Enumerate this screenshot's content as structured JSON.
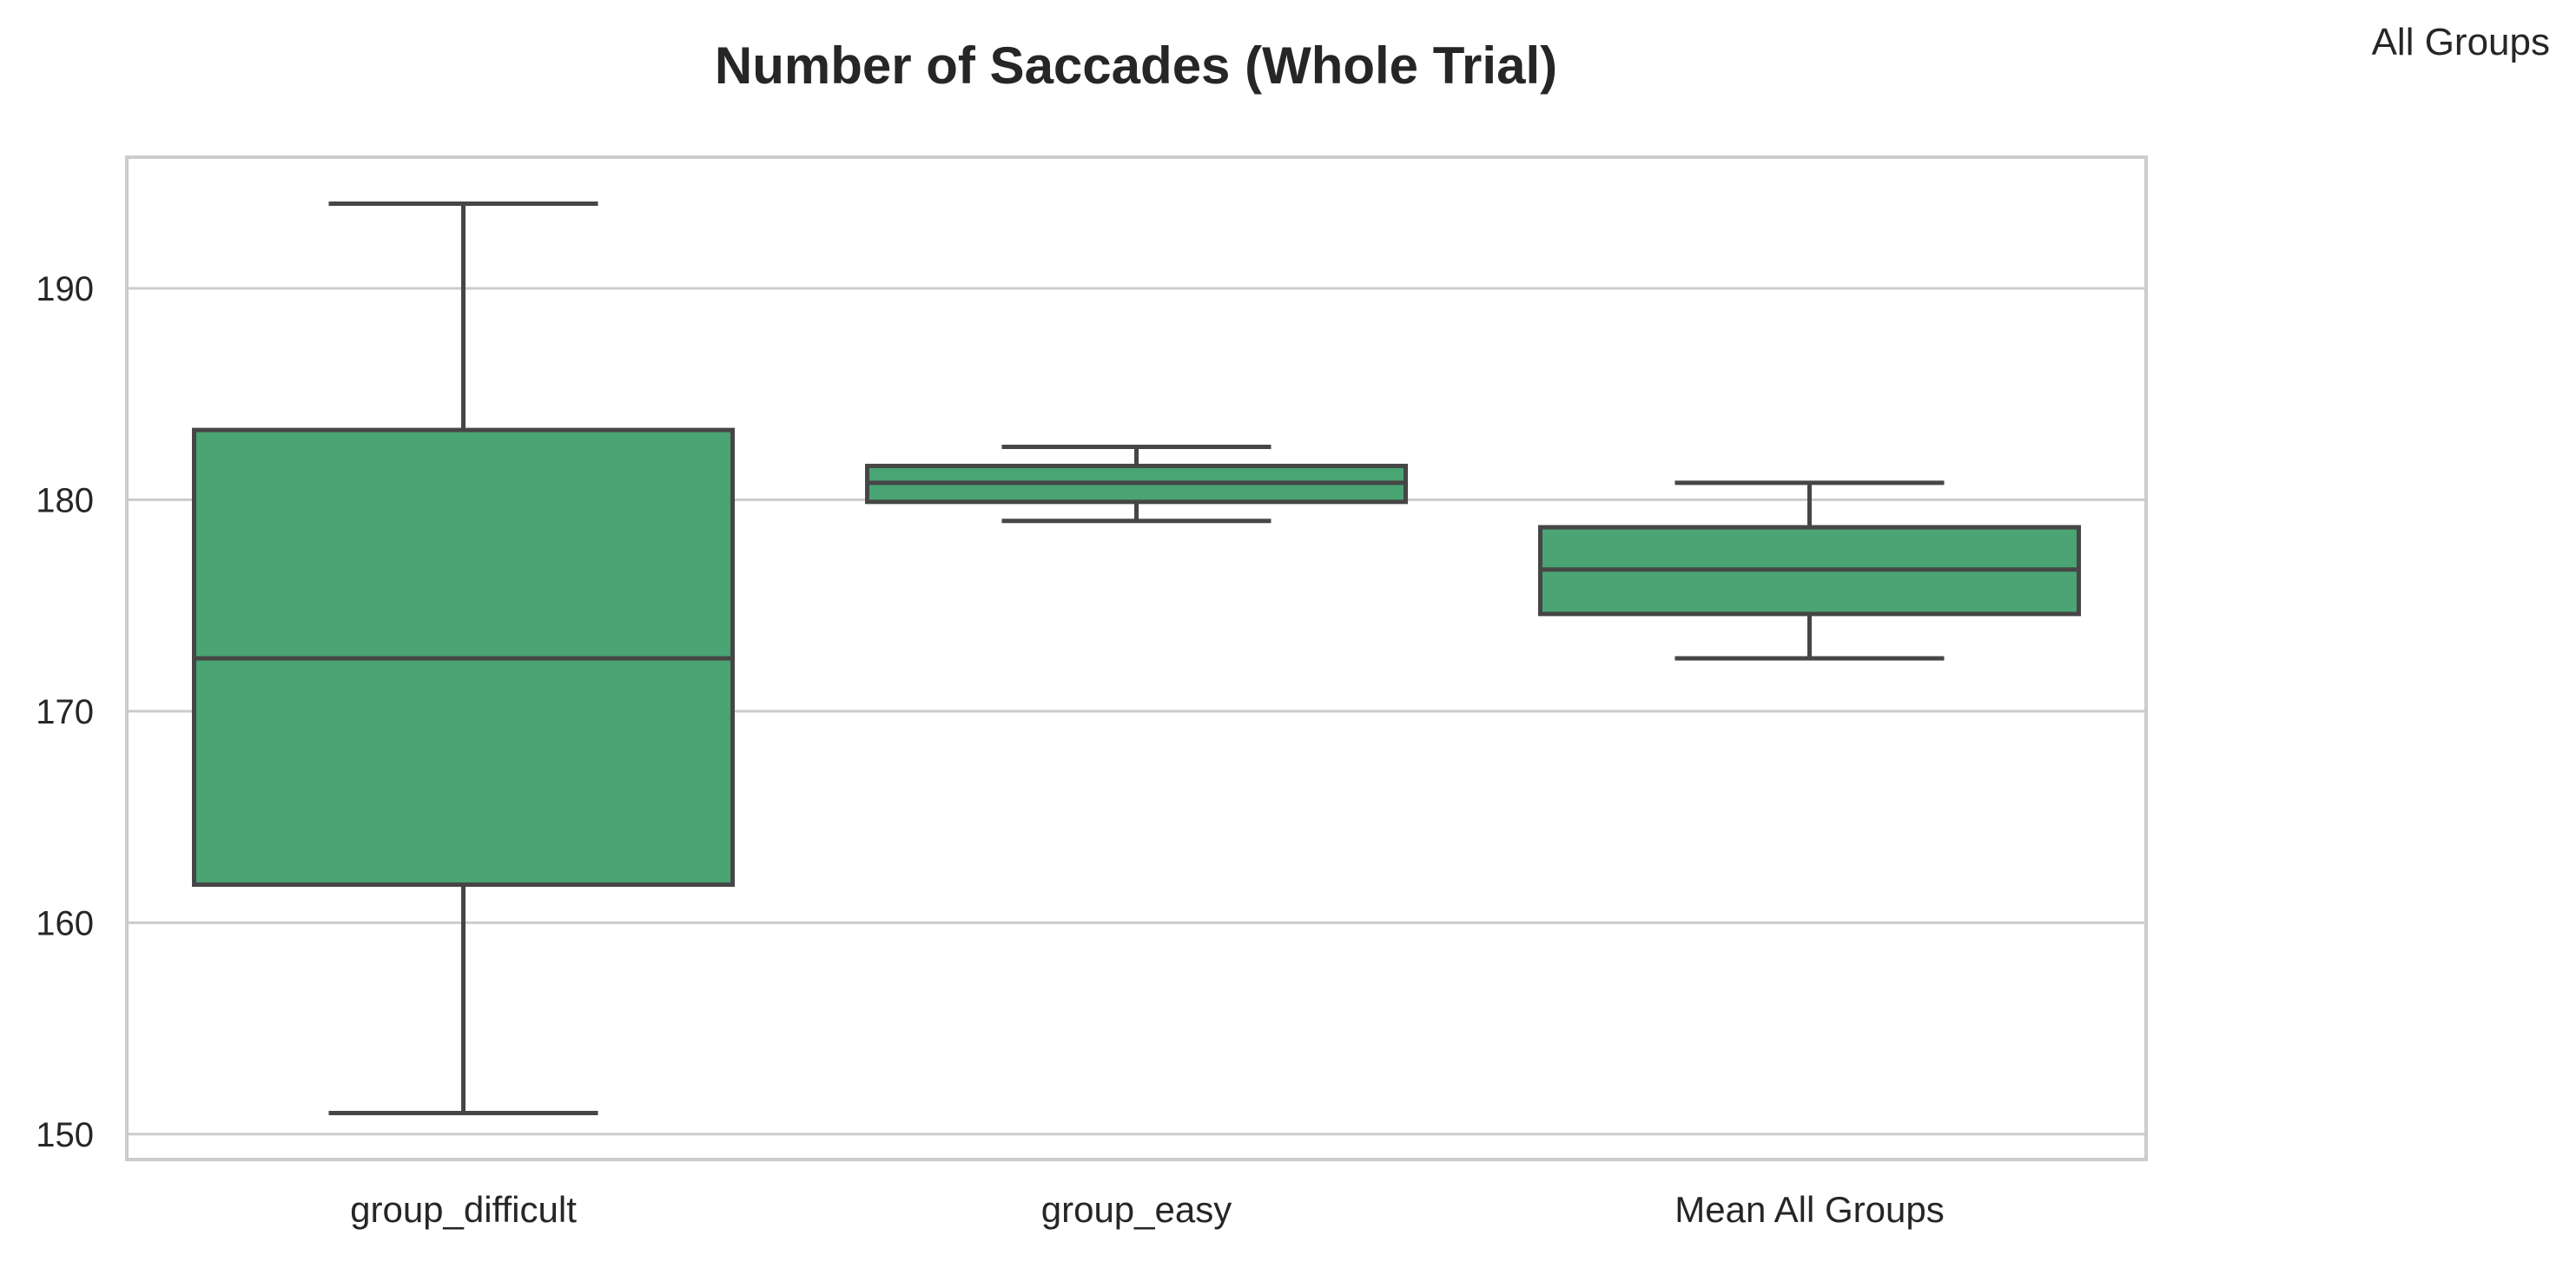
{
  "chart_data": {
    "type": "box",
    "title": "Number of Saccades (Whole Trial)",
    "legend_title": "All Groups",
    "xlabel": "",
    "ylabel": "",
    "ylim": [
      148.8,
      196.2
    ],
    "yticks": [
      150,
      160,
      170,
      180,
      190
    ],
    "grid": "horizontal",
    "box_color": "#4aa473",
    "line_color": "#464646",
    "grid_color": "#cccccc",
    "categories": [
      "group_difficult",
      "group_easy",
      "Mean All Groups"
    ],
    "boxes": [
      {
        "category": "group_difficult",
        "whisker_low": 151.0,
        "q1": 161.8,
        "median": 172.5,
        "q3": 183.3,
        "whisker_high": 194.0
      },
      {
        "category": "group_easy",
        "whisker_low": 179.0,
        "q1": 179.9,
        "median": 180.8,
        "q3": 181.6,
        "whisker_high": 182.5
      },
      {
        "category": "Mean All Groups",
        "whisker_low": 172.5,
        "q1": 174.6,
        "median": 176.7,
        "q3": 178.7,
        "whisker_high": 180.8
      }
    ]
  }
}
